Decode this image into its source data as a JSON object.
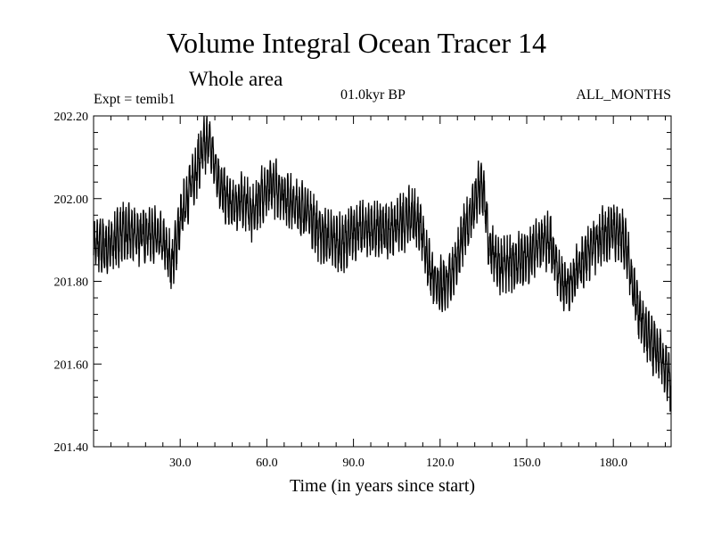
{
  "header": {
    "title": "Volume Integral Ocean Tracer 14",
    "subtitle": "Whole area",
    "experiment": "Expt = temib1",
    "period": "01.0kyr BP",
    "months": "ALL_MONTHS"
  },
  "chart_data": {
    "type": "line",
    "title": "Volume Integral Ocean Tracer 14",
    "subtitle": "Whole area",
    "xlabel": "Time (in years since start)",
    "ylabel": "",
    "xlim": [
      0,
      200
    ],
    "ylim": [
      201.4,
      202.2
    ],
    "x_ticks": [
      30,
      60,
      90,
      120,
      150,
      180
    ],
    "x_tick_labels": [
      "30.0",
      "60.0",
      "90.0",
      "120.0",
      "150.0",
      "180.0"
    ],
    "y_ticks": [
      201.4,
      201.6,
      201.8,
      202.0,
      202.2
    ],
    "y_tick_labels": [
      "201.40",
      "201.60",
      "201.80",
      "202.00",
      "202.20"
    ],
    "series": [
      {
        "name": "Volume Integral Ocean Tracer 14",
        "color": "#000000",
        "note": "approximate envelope midline read from figure; trace shows strong annual oscillation of roughly ±0.06",
        "oscillation_amplitude": 0.06,
        "x": [
          0,
          5,
          10,
          15,
          20,
          25,
          27,
          30,
          33,
          36,
          38,
          40,
          42,
          45,
          48,
          52,
          55,
          58,
          62,
          66,
          70,
          74,
          78,
          82,
          86,
          90,
          95,
          100,
          105,
          110,
          113,
          116,
          120,
          123,
          126,
          129,
          132,
          134,
          135,
          137,
          140,
          145,
          150,
          155,
          158,
          161,
          163,
          166,
          170,
          175,
          180,
          184,
          187,
          190,
          193,
          196,
          200
        ],
        "y": [
          201.89,
          201.88,
          201.92,
          201.91,
          201.92,
          201.88,
          201.84,
          201.94,
          202.02,
          202.08,
          202.12,
          202.14,
          202.08,
          202.01,
          201.98,
          202.0,
          201.96,
          202.01,
          202.03,
          202.01,
          201.98,
          201.97,
          201.92,
          201.9,
          201.89,
          201.92,
          201.93,
          201.92,
          201.93,
          201.96,
          201.94,
          201.83,
          201.79,
          201.8,
          201.86,
          201.93,
          201.99,
          202.03,
          202.02,
          201.88,
          201.84,
          201.84,
          201.86,
          201.89,
          201.9,
          201.82,
          201.78,
          201.81,
          201.86,
          201.9,
          201.93,
          201.9,
          201.78,
          201.7,
          201.65,
          201.62,
          201.55
        ]
      }
    ]
  }
}
